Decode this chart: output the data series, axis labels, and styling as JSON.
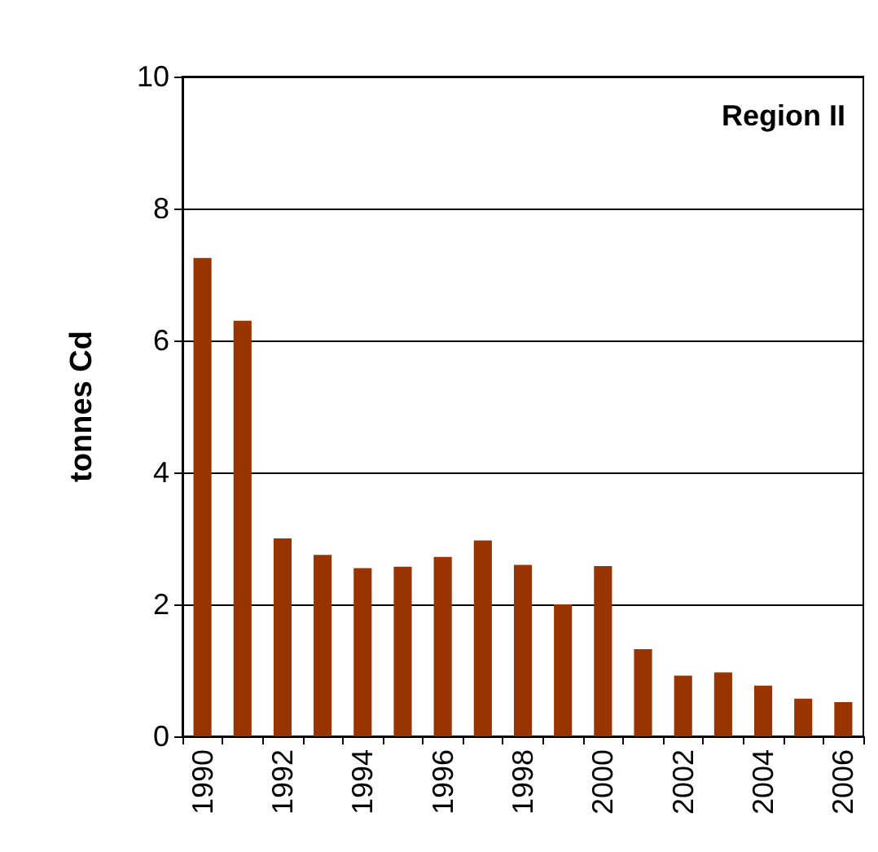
{
  "chart_data": {
    "type": "bar",
    "ylabel": "tonnes Cd",
    "annotations": [
      "Region II"
    ],
    "categories": [
      "1990",
      null,
      "1992",
      null,
      "1994",
      null,
      "1996",
      null,
      "1998",
      null,
      "2000",
      null,
      "2002",
      null,
      "2004",
      null,
      "2006"
    ],
    "values": [
      7.25,
      6.3,
      3.0,
      2.75,
      2.55,
      2.57,
      2.72,
      2.97,
      2.6,
      2.0,
      2.58,
      1.32,
      0.92,
      0.97,
      0.77,
      0.57,
      0.52
    ],
    "color": "#993300",
    "ylim": [
      0,
      10
    ],
    "yticks": [
      0,
      2,
      4,
      6,
      8,
      10
    ],
    "grid": "y"
  }
}
